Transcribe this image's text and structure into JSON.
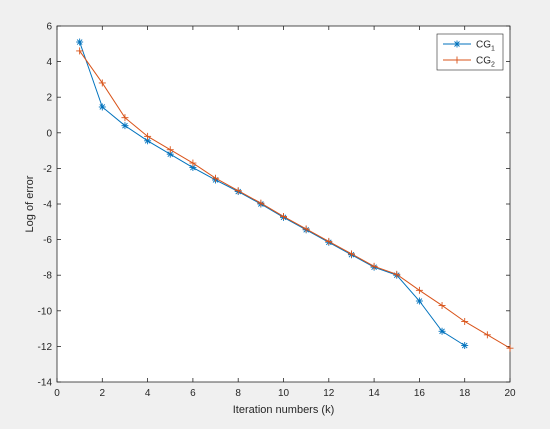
{
  "chart_data": {
    "type": "line",
    "xlabel": "Iteration numbers (k)",
    "ylabel": "Log of error",
    "xlim": [
      0,
      20
    ],
    "ylim": [
      -14,
      6
    ],
    "xticks": [
      0,
      2,
      4,
      6,
      8,
      10,
      12,
      14,
      16,
      18,
      20
    ],
    "yticks": [
      -14,
      -12,
      -10,
      -8,
      -6,
      -4,
      -2,
      0,
      2,
      4,
      6
    ],
    "grid": false,
    "legend_position": "top-right",
    "series": [
      {
        "name": "CG",
        "subscript": "1",
        "color": "#0072BD",
        "marker": "asterisk",
        "x": [
          1,
          2,
          3,
          4,
          5,
          6,
          7,
          8,
          9,
          10,
          11,
          12,
          13,
          14,
          15,
          16,
          17,
          18
        ],
        "y": [
          5.1,
          1.45,
          0.4,
          -0.45,
          -1.2,
          -1.95,
          -2.65,
          -3.3,
          -4.0,
          -4.75,
          -5.45,
          -6.15,
          -6.85,
          -7.55,
          -8.0,
          -9.45,
          -11.15,
          -11.95
        ]
      },
      {
        "name": "CG",
        "subscript": "2",
        "color": "#D95319",
        "marker": "plus",
        "x": [
          1,
          2,
          3,
          4,
          5,
          6,
          7,
          8,
          9,
          10,
          11,
          12,
          13,
          14,
          15,
          16,
          17,
          18,
          19,
          20
        ],
        "y": [
          4.6,
          2.8,
          0.85,
          -0.2,
          -0.95,
          -1.7,
          -2.55,
          -3.25,
          -3.95,
          -4.7,
          -5.4,
          -6.1,
          -6.8,
          -7.5,
          -7.95,
          -8.85,
          -9.7,
          -10.6,
          -11.35,
          -12.1
        ]
      }
    ]
  }
}
